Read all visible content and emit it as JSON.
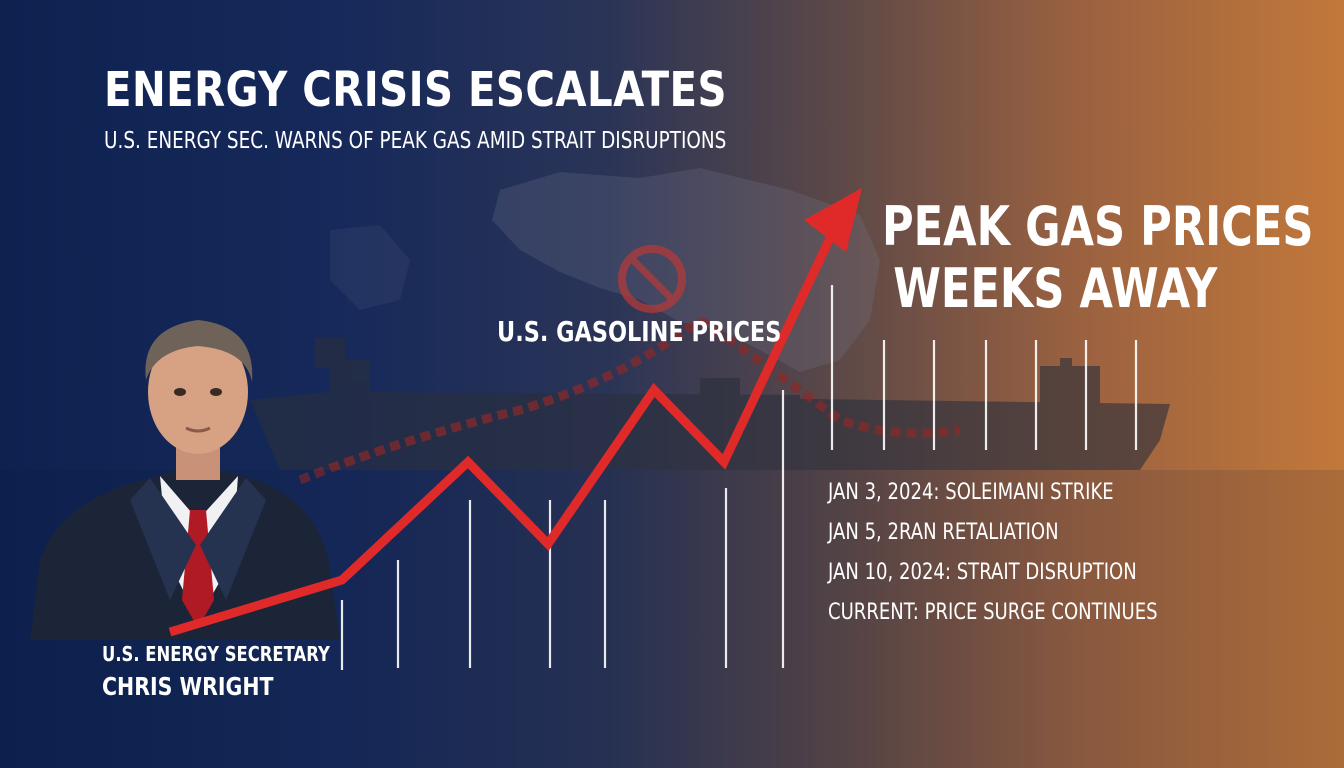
{
  "headline": "ENERGY CRISIS ESCALATES",
  "subheadline": "U.S. ENERGY SEC. WARNS OF PEAK GAS AMID STRAIT DISRUPTIONS",
  "callout": {
    "line1": "PEAK GAS PRICES",
    "line2": "WEEKS AWAY"
  },
  "chart": {
    "title": "U.S. GASOLINE PRICES",
    "trend": "rising",
    "arrow_color": "#e02a2a"
  },
  "timeline": [
    "JAN 3, 2024: SOLEIMANI STRIKE",
    "JAN 5, 2RAN RETALIATION",
    "JAN 10, 2024: STRAIT DISRUPTION",
    "CURRENT: PRICE SURGE CONTINUES"
  ],
  "person": {
    "role": "U.S. ENERGY SECRETARY",
    "name": "CHRIS WRIGHT"
  },
  "colors": {
    "background_left": "#0e2250",
    "background_right": "#c2783a",
    "text": "#ffffff"
  },
  "icons": [
    "map-silhouette",
    "tanker-ship",
    "anchor-chain",
    "blocked-sign",
    "price-arrow"
  ]
}
